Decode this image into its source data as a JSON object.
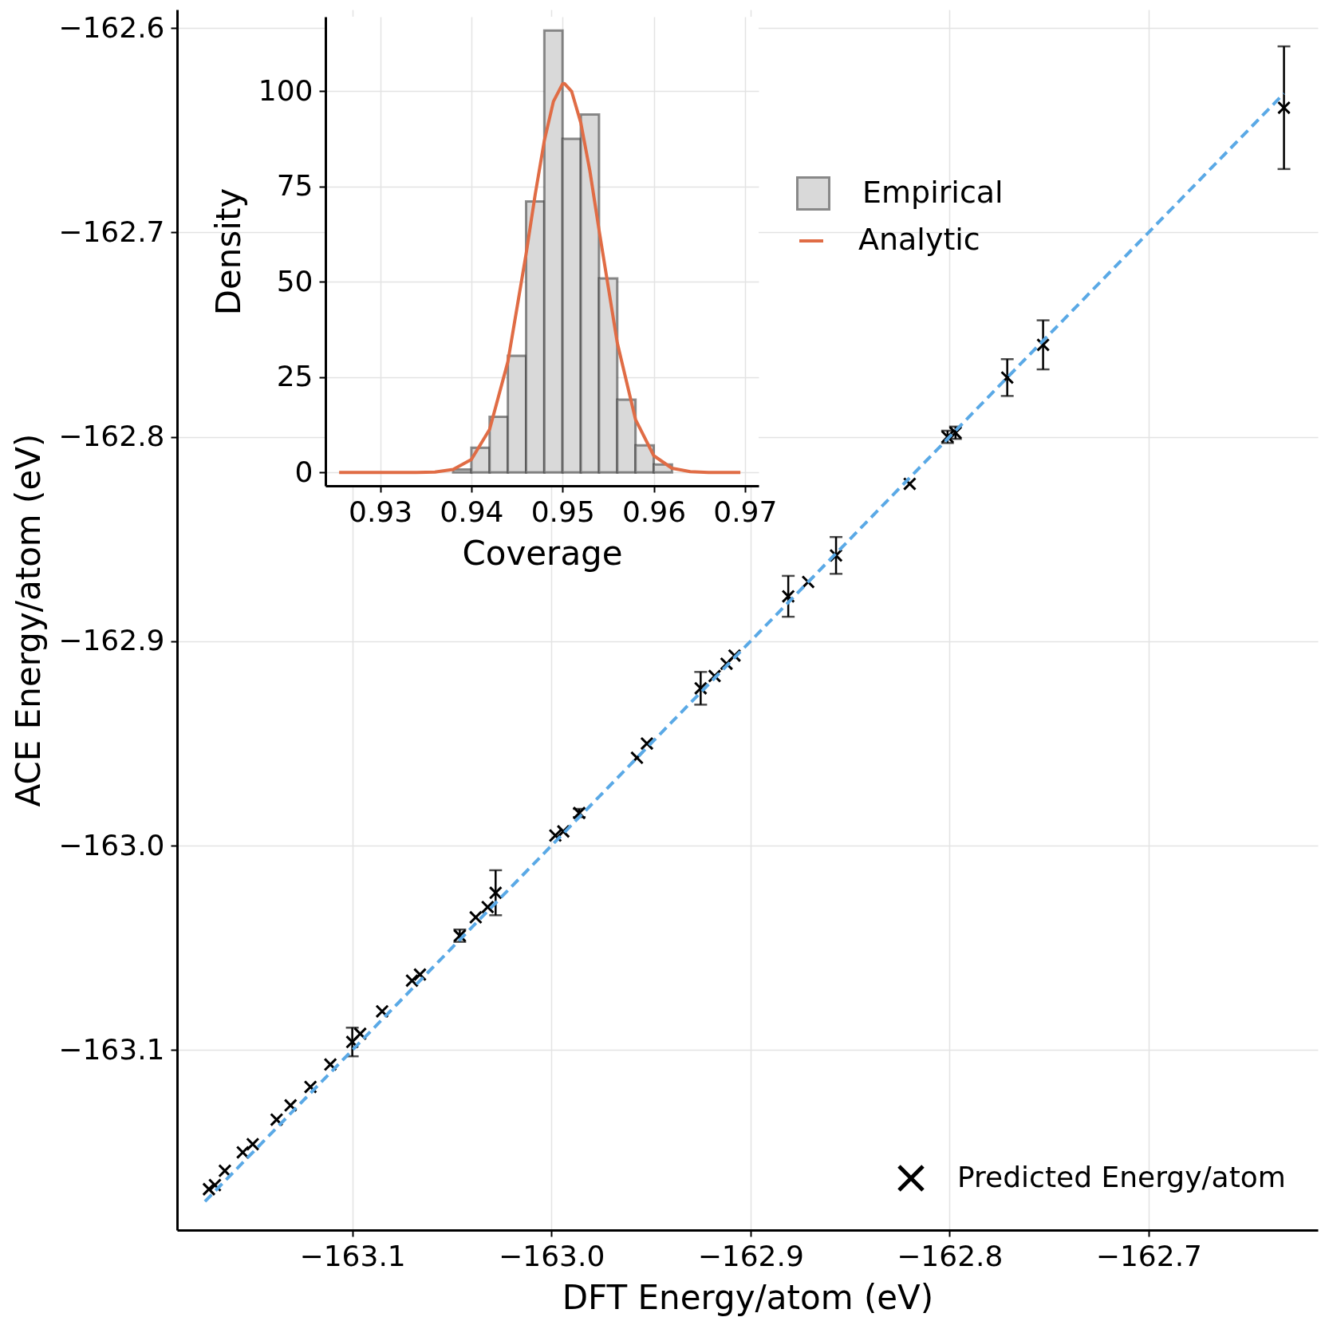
{
  "chart_data": [
    {
      "type": "scatter",
      "xlabel": "DFT Energy/atom (eV)",
      "ylabel": "ACE Energy/atom (eV)",
      "xlim": [
        -163.188,
        -162.615
      ],
      "ylim": [
        -163.188,
        -162.591
      ],
      "xticks": [
        -163.1,
        {
          "value": -163,
          "label": "−163.0"
        },
        -162.9,
        -162.8,
        -162.7
      ],
      "yticks": [
        -163.1,
        {
          "value": -163,
          "label": "−163.0"
        },
        -162.9,
        -162.8,
        -162.7,
        -162.6
      ],
      "grid": true,
      "legend": "bottom right",
      "marker": "cross",
      "series": [
        {
          "name": "Predicted Energy/atom",
          "color": "#000000",
          "x": [
            -163.172,
            -163.169,
            -163.164,
            -163.155,
            -163.15,
            -163.138,
            -163.131,
            -163.121,
            -163.111,
            -163.1,
            -163.096,
            -163.085,
            -163.07,
            -163.066,
            -163.046,
            -163.038,
            -163.032,
            -163.028,
            -162.998,
            -162.994,
            -162.986,
            -162.957,
            -162.952,
            -162.925,
            -162.918,
            -162.912,
            -162.908,
            -162.881,
            -162.871,
            -162.857,
            -162.82,
            -162.801,
            -162.797,
            -162.771,
            -162.753,
            -162.632
          ],
          "values": [
            -163.168,
            -163.166,
            -163.159,
            -163.15,
            -163.146,
            -163.134,
            -163.127,
            -163.118,
            -163.107,
            -163.096,
            -163.092,
            -163.081,
            -163.066,
            -163.063,
            -163.044,
            -163.035,
            -163.03,
            -163.023,
            -162.995,
            -162.993,
            -162.984,
            -162.957,
            -162.95,
            -162.923,
            -162.917,
            -162.911,
            -162.907,
            -162.878,
            -162.871,
            -162.858,
            -162.823,
            -162.8,
            -162.798,
            -162.771,
            -162.755,
            -162.639
          ],
          "errors": [
            null,
            null,
            null,
            null,
            null,
            null,
            null,
            null,
            null,
            0.007,
            null,
            null,
            null,
            null,
            0.003,
            null,
            null,
            0.011,
            null,
            null,
            0.002,
            null,
            null,
            0.008,
            null,
            null,
            null,
            0.01,
            null,
            0.009,
            null,
            0.003,
            0.003,
            0.009,
            0.012,
            0.03
          ]
        },
        {
          "type": "line",
          "color": "#5aa9e6",
          "line_style": "dashed",
          "marker": "none",
          "x": [
            -163.174,
            -162.632
          ],
          "values": [
            -163.174,
            -162.632
          ]
        }
      ]
    },
    {
      "type": "histogram",
      "xlabel": "Coverage",
      "ylabel": "Density",
      "xlim": [
        0.924,
        0.9715
      ],
      "ylim": [
        -3.5,
        119.5
      ],
      "xticks": [
        0.93,
        0.94,
        0.95,
        0.96,
        0.97
      ],
      "yticks": [
        0,
        25,
        50,
        75,
        100
      ],
      "grid": true,
      "legend": "right",
      "bins": [
        0.936,
        0.938,
        0.94,
        0.942,
        0.944,
        0.946,
        0.948,
        0.95,
        0.952,
        0.954,
        0.956,
        0.958,
        0.96,
        0.962
      ],
      "series": [
        {
          "name": "Empirical",
          "color": "#d9d9d9",
          "values": [
            null,
            0.8,
            6.5,
            14.6,
            30.6,
            71.1,
            115.9,
            87.5,
            93.9,
            50.9,
            19.1,
            7.1,
            2.1
          ]
        },
        {
          "name": "Analytic",
          "type": "line",
          "color": "#e06c45",
          "x": [
            0.9255,
            0.934,
            0.936,
            0.938,
            0.94,
            0.942,
            0.944,
            0.946,
            0.947,
            0.948,
            0.949,
            0.95,
            0.9502,
            0.951,
            0.952,
            0.953,
            0.954,
            0.956,
            0.958,
            0.96,
            0.962,
            0.964,
            0.966,
            0.9695
          ],
          "values": [
            0,
            0,
            0.1,
            0.8,
            3.4,
            11.3,
            29.0,
            57.3,
            72.9,
            87.0,
            97.3,
            101.9,
            102,
            99.9,
            91.7,
            79.0,
            63.6,
            34.0,
            13.9,
            4.4,
            1.1,
            0.2,
            0,
            0
          ]
        }
      ]
    }
  ]
}
